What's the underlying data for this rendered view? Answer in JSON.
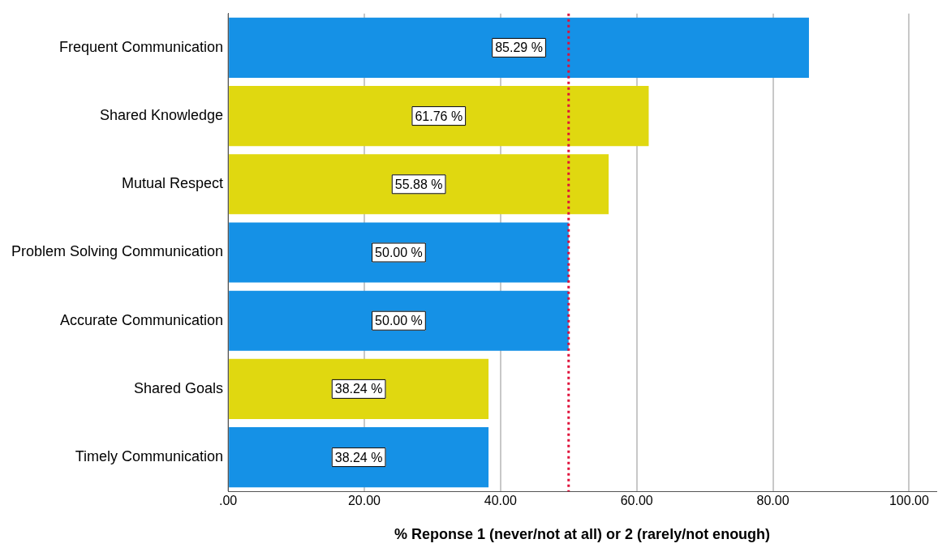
{
  "chart_data": {
    "type": "bar",
    "orientation": "horizontal",
    "categories": [
      "Frequent Communication",
      "Shared Knowledge",
      "Mutual Respect",
      "Problem Solving Communication",
      "Accurate Communication",
      "Shared Goals",
      "Timely Communication"
    ],
    "values": [
      85.29,
      61.76,
      55.88,
      50.0,
      50.0,
      38.24,
      38.24
    ],
    "colors": [
      "#1591e6",
      "#e0d810",
      "#e0d810",
      "#1591e6",
      "#1591e6",
      "#e0d810",
      "#1591e6"
    ],
    "value_labels": [
      "85.29 %",
      "61.76 %",
      "55.88 %",
      "50.00 %",
      "50.00 %",
      "38.24 %",
      "38.24 %"
    ],
    "xlabel": "% Reponse 1 (never/not at all) or 2 (rarely/not enough)",
    "xlim": [
      0,
      104
    ],
    "xticks": [
      {
        "value": 0,
        "label": ".00"
      },
      {
        "value": 20,
        "label": "20.00"
      },
      {
        "value": 40,
        "label": "40.00"
      },
      {
        "value": 60,
        "label": "60.00"
      },
      {
        "value": 80,
        "label": "80.00"
      },
      {
        "value": 100,
        "label": "100.00"
      }
    ],
    "grid": "x",
    "legend": false,
    "ref_lines": [
      {
        "axis": "x",
        "value": 50,
        "color": "#e0103a",
        "line_style": "dotted"
      }
    ]
  }
}
